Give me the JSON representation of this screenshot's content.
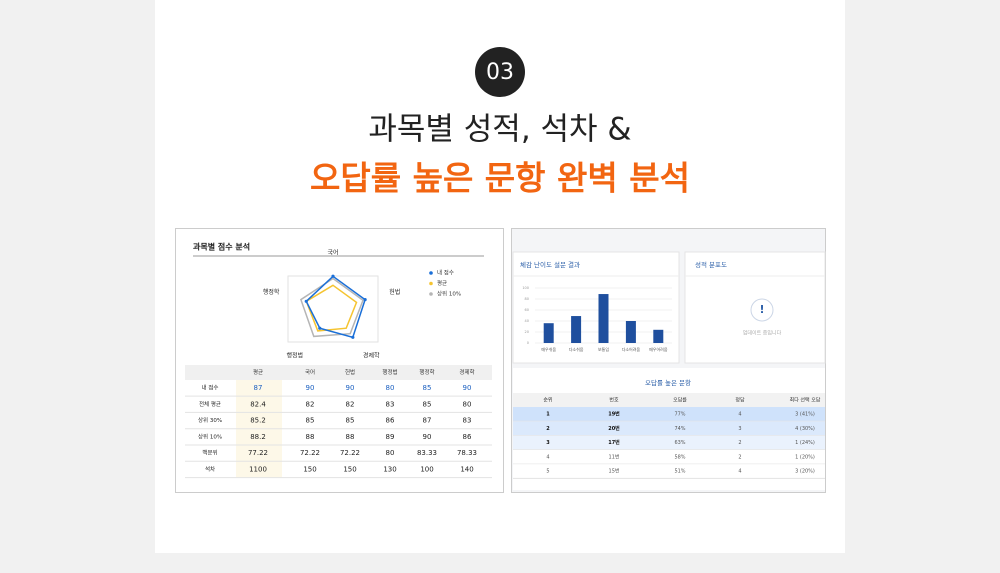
{
  "header": {
    "badge": "03",
    "title_line1": "과목별 성적, 석차 &",
    "title_line2": "오답률 높은 문항 완벽 분석"
  },
  "score_panel": {
    "title": "과목별 점수 분석",
    "radar": {
      "type": "radar",
      "axes": [
        "국어",
        "헌법",
        "경제학",
        "행정법",
        "행정학"
      ],
      "rlim": [
        60,
        100
      ],
      "series": [
        {
          "name": "내 점수",
          "color": "#1a6fd8",
          "values": [
            90,
            90,
            90,
            80,
            85
          ]
        },
        {
          "name": "평균",
          "color": "#f5c431",
          "values": [
            82,
            82,
            80,
            83,
            85
          ]
        },
        {
          "name": "상위 10%",
          "color": "#b5b5b5",
          "values": [
            88,
            88,
            86,
            89,
            90
          ]
        }
      ]
    },
    "table": {
      "header": [
        "평균",
        "국어",
        "헌법",
        "행정법",
        "행정학",
        "경제학"
      ],
      "rows": [
        [
          "내 점수",
          87,
          90,
          90,
          80,
          85,
          90
        ],
        [
          "전체 평균",
          82.4,
          82,
          82,
          83,
          85,
          80
        ],
        [
          "상위 30%",
          85.2,
          85,
          85,
          86,
          87,
          83
        ],
        [
          "상위 10%",
          88.2,
          88,
          88,
          89,
          90,
          86
        ],
        [
          "백분위",
          77.22,
          72.22,
          72.22,
          80,
          83.33,
          78.33
        ],
        [
          "석차",
          1100,
          150,
          150,
          130,
          100,
          140
        ]
      ]
    }
  },
  "survey": {
    "title": "체감 난이도 설문 결과",
    "type": "bar",
    "categories": [
      "매우쉬움",
      "다소쉬움",
      "보통임",
      "다소어려움",
      "매우어려움"
    ],
    "values": [
      36,
      49,
      89,
      40,
      24
    ],
    "color": "#1f4f9e",
    "ylim": [
      0,
      100
    ],
    "yticks": [
      0,
      20,
      40,
      60,
      80,
      100
    ]
  },
  "distribution": {
    "title": "성적 분포도",
    "message": "업데이트 중입니다"
  },
  "wrong_table": {
    "title": "오답률 높은 문항",
    "header": [
      "순위",
      "번호",
      "오답률",
      "정답",
      "최다 선택 오답"
    ],
    "rows": [
      [
        "1",
        "19번",
        "77%",
        "4",
        "3 (41%)"
      ],
      [
        "2",
        "20번",
        "74%",
        "3",
        "4 (30%)"
      ],
      [
        "3",
        "17번",
        "63%",
        "2",
        "1 (24%)"
      ],
      [
        "4",
        "11번",
        "58%",
        "2",
        "1 (20%)"
      ],
      [
        "5",
        "15번",
        "51%",
        "4",
        "3 (20%)"
      ]
    ]
  }
}
